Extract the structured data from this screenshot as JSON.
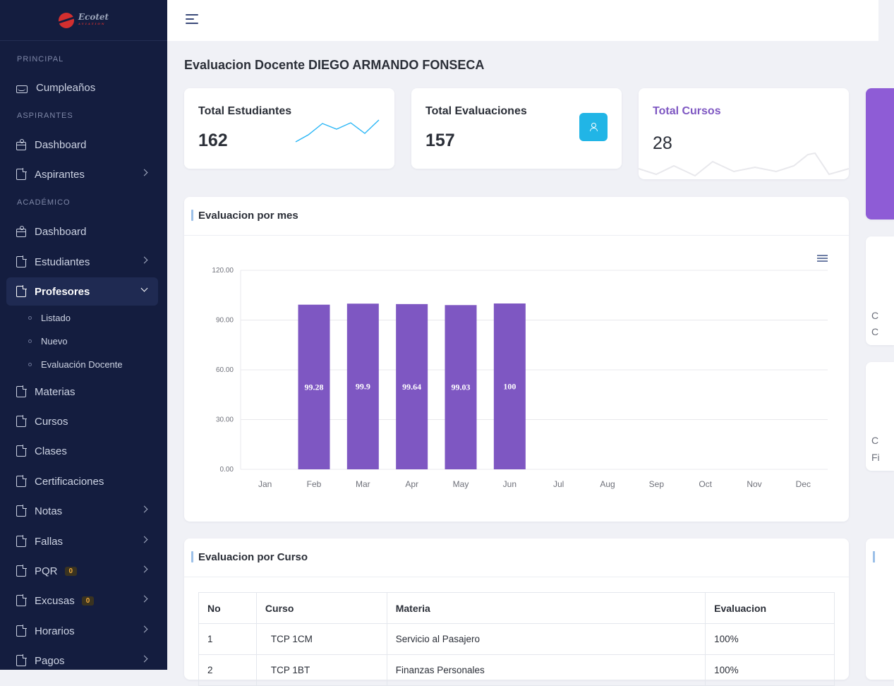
{
  "brand": {
    "name": "Ecotet",
    "tagline": "AVIATION"
  },
  "sidebar": {
    "sections": {
      "principal": "PRINCIPAL",
      "aspirantes": "ASPIRANTES",
      "academico": "ACADÉMICO"
    },
    "items": {
      "cumpleanos": "Cumpleaños",
      "dashboard_aspirantes": "Dashboard",
      "aspirantes": "Aspirantes",
      "dashboard_academico": "Dashboard",
      "estudiantes": "Estudiantes",
      "profesores": "Profesores",
      "listado": "Listado",
      "nuevo": "Nuevo",
      "evaluacion_docente": "Evaluación Docente",
      "materias": "Materias",
      "cursos": "Cursos",
      "clases": "Clases",
      "certificaciones": "Certificaciones",
      "notas": "Notas",
      "fallas": "Fallas",
      "pqr": "PQR",
      "pqr_badge": "0",
      "excusas": "Excusas",
      "excusas_badge": "0",
      "horarios": "Horarios",
      "pagos": "Pagos"
    }
  },
  "page": {
    "title": "Evaluacion Docente DIEGO ARMANDO FONSECA"
  },
  "stats": {
    "estudiantes": {
      "label": "Total Estudiantes",
      "value": "162"
    },
    "evaluaciones": {
      "label": "Total Evaluaciones",
      "value": "157"
    },
    "cursos": {
      "label": "Total Cursos",
      "value": "28",
      "label_color": "#7e57c2"
    }
  },
  "colors": {
    "bar": "#7e57c2",
    "sparkline": "#29b6f6",
    "sidebar_bg": "#141d3f",
    "accent_button": "#21b5e6"
  },
  "monthly": {
    "title": "Evaluacion por mes"
  },
  "chart_data": {
    "type": "bar",
    "categories": [
      "Jan",
      "Feb",
      "Mar",
      "Apr",
      "May",
      "Jun",
      "Jul",
      "Aug",
      "Sep",
      "Oct",
      "Nov",
      "Dec"
    ],
    "values": [
      null,
      99.28,
      99.9,
      99.64,
      99.03,
      100,
      null,
      null,
      null,
      null,
      null,
      null
    ],
    "data_labels": [
      "",
      "99.28",
      "99.9",
      "99.64",
      "99.03",
      "100",
      "",
      "",
      "",
      "",
      "",
      ""
    ],
    "y_ticks": [
      "0.00",
      "30.00",
      "60.00",
      "90.00",
      "120.00"
    ],
    "ylim": [
      0,
      120
    ],
    "grid": true,
    "title": "",
    "xlabel": "",
    "ylabel": ""
  },
  "course_table": {
    "title": "Evaluacion por Curso",
    "headers": [
      "No",
      "Curso",
      "Materia",
      "Evaluacion"
    ],
    "rows": [
      [
        "1",
        "TCP 1CM",
        "Servicio al Pasajero",
        "100%"
      ],
      [
        "2",
        "TCP 1BT",
        "Finanzas Personales",
        "100%"
      ]
    ]
  },
  "right_column": {
    "texts": [
      "C",
      "C",
      "C",
      "Fi"
    ]
  }
}
